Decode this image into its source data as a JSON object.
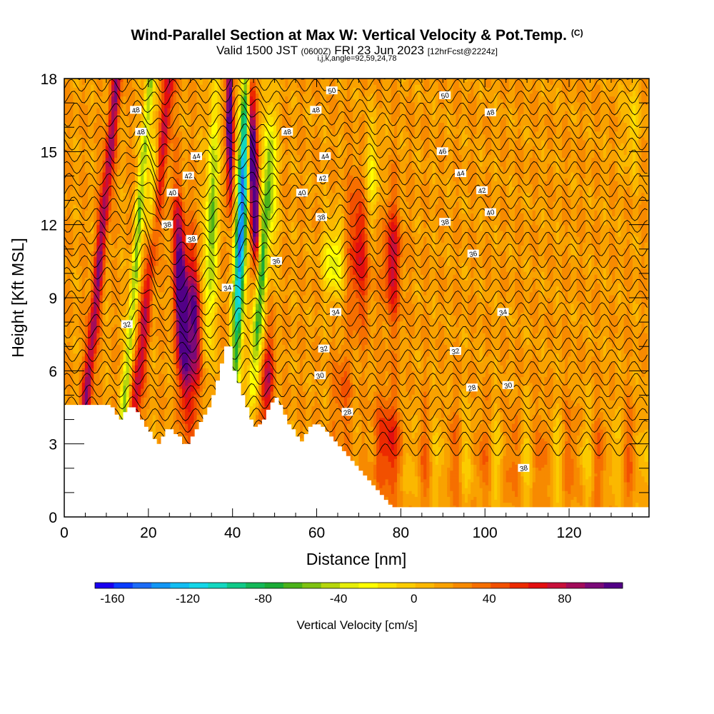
{
  "header": {
    "title": "Wind-Parallel Section at Max W: Vertical Velocity & Pot.Temp.",
    "copyright_mark": "(C)",
    "valid_prefix": "Valid 1500 JST",
    "valid_z": "(0600Z)",
    "valid_date": "FRI 23 Jun 2023",
    "forecast_tag": "[12hrFcst@2224z]",
    "section_params": "i,j,k,angle=92,59,24,78"
  },
  "chart_data": {
    "type": "heatmap",
    "xlabel": "Distance [nm]",
    "ylabel": "Height [Kft MSL]",
    "x_ticks": [
      "0",
      "20",
      "40",
      "60",
      "80",
      "100",
      "120"
    ],
    "x_tick_values": [
      0,
      20,
      40,
      60,
      80,
      100,
      120
    ],
    "y_ticks": [
      "0",
      "3",
      "6",
      "9",
      "12",
      "15",
      "18"
    ],
    "y_tick_values": [
      0,
      3,
      6,
      9,
      12,
      15,
      18
    ],
    "xlim": [
      0,
      139
    ],
    "ylim": [
      0,
      18
    ],
    "colorbar": {
      "label": "Vertical Velocity [cm/s]",
      "tick_labels": [
        "-160",
        "-120",
        "-80",
        "-40",
        "0",
        "40",
        "80"
      ],
      "tick_values": [
        -160,
        -120,
        -80,
        -40,
        0,
        40,
        80
      ],
      "range": [
        -170,
        110
      ],
      "colors": [
        "#1a00f0",
        "#0a3cff",
        "#1c6cf6",
        "#1296f5",
        "#12bdf2",
        "#13d6e8",
        "#13d7c0",
        "#10c988",
        "#14b858",
        "#1bab36",
        "#4bb21a",
        "#7fc212",
        "#b6d60c",
        "#e6ee08",
        "#ffff00",
        "#fbe300",
        "#fbcc00",
        "#fbb800",
        "#f9a200",
        "#f78a00",
        "#f66f00",
        "#f25000",
        "#ec2a00",
        "#e30f10",
        "#c8103a",
        "#a20c5a",
        "#7a0a78",
        "#520086"
      ]
    },
    "contour_labels": [
      {
        "text": "50",
        "x": 63.6,
        "y": 17.5
      },
      {
        "text": "50",
        "x": 90.5,
        "y": 17.3
      },
      {
        "text": "48",
        "x": 17.0,
        "y": 16.7
      },
      {
        "text": "48",
        "x": 18.2,
        "y": 15.8
      },
      {
        "text": "48",
        "x": 59.8,
        "y": 16.7
      },
      {
        "text": "48",
        "x": 53.0,
        "y": 15.8
      },
      {
        "text": "48",
        "x": 101.3,
        "y": 16.6
      },
      {
        "text": "46",
        "x": 89.9,
        "y": 15.0
      },
      {
        "text": "44",
        "x": 31.4,
        "y": 14.8
      },
      {
        "text": "44",
        "x": 62.0,
        "y": 14.8
      },
      {
        "text": "44",
        "x": 94.2,
        "y": 14.1
      },
      {
        "text": "42",
        "x": 29.5,
        "y": 14.0
      },
      {
        "text": "42",
        "x": 61.4,
        "y": 13.9
      },
      {
        "text": "42",
        "x": 99.3,
        "y": 13.4
      },
      {
        "text": "40",
        "x": 25.7,
        "y": 13.3
      },
      {
        "text": "40",
        "x": 56.5,
        "y": 13.3
      },
      {
        "text": "40",
        "x": 101.3,
        "y": 12.5
      },
      {
        "text": "38",
        "x": 24.5,
        "y": 12.0
      },
      {
        "text": "38",
        "x": 61.1,
        "y": 12.3
      },
      {
        "text": "38",
        "x": 90.5,
        "y": 12.1
      },
      {
        "text": "38",
        "x": 30.3,
        "y": 11.4
      },
      {
        "text": "36",
        "x": 50.4,
        "y": 10.5
      },
      {
        "text": "36",
        "x": 97.2,
        "y": 10.8
      },
      {
        "text": "34",
        "x": 38.8,
        "y": 9.4
      },
      {
        "text": "34",
        "x": 64.5,
        "y": 8.4
      },
      {
        "text": "34",
        "x": 104.3,
        "y": 8.4
      },
      {
        "text": "32",
        "x": 14.9,
        "y": 7.9
      },
      {
        "text": "32",
        "x": 61.7,
        "y": 6.9
      },
      {
        "text": "32",
        "x": 93.0,
        "y": 6.8
      },
      {
        "text": "30",
        "x": 60.8,
        "y": 5.8
      },
      {
        "text": "30",
        "x": 105.5,
        "y": 5.4
      },
      {
        "text": "28",
        "x": 96.9,
        "y": 5.3
      },
      {
        "text": "28",
        "x": 67.3,
        "y": 4.3
      },
      {
        "text": "38",
        "x": 109.2,
        "y": 2.0
      }
    ],
    "terrain": [
      [
        0,
        4.6
      ],
      [
        6,
        4.6
      ],
      [
        10,
        4.6
      ],
      [
        11,
        4.5
      ],
      [
        12,
        4.2
      ],
      [
        13,
        4.0
      ],
      [
        14,
        4.3
      ],
      [
        15,
        4.5
      ],
      [
        16,
        4.5
      ],
      [
        17,
        4.3
      ],
      [
        18,
        4.0
      ],
      [
        19,
        3.7
      ],
      [
        20,
        3.5
      ],
      [
        21,
        3.2
      ],
      [
        22,
        3.0
      ],
      [
        23,
        3.3
      ],
      [
        24,
        3.6
      ],
      [
        25,
        3.6
      ],
      [
        26,
        3.4
      ],
      [
        27,
        3.3
      ],
      [
        28,
        3.0
      ],
      [
        29,
        3.0
      ],
      [
        30,
        3.3
      ],
      [
        31,
        3.6
      ],
      [
        32,
        3.9
      ],
      [
        33,
        4.2
      ],
      [
        34,
        4.5
      ],
      [
        35,
        5.0
      ],
      [
        36,
        5.6
      ],
      [
        37,
        6.3
      ],
      [
        38,
        7.0
      ],
      [
        39,
        7.0
      ],
      [
        40,
        6.0
      ],
      [
        41,
        5.5
      ],
      [
        42,
        5.0
      ],
      [
        43,
        4.5
      ],
      [
        44,
        4.0
      ],
      [
        45,
        3.7
      ],
      [
        46,
        3.8
      ],
      [
        47,
        4.0
      ],
      [
        48,
        4.4
      ],
      [
        49,
        4.7
      ],
      [
        50,
        4.9
      ],
      [
        51,
        4.6
      ],
      [
        52,
        4.2
      ],
      [
        53,
        3.8
      ],
      [
        54,
        3.6
      ],
      [
        55,
        3.3
      ],
      [
        56,
        3.1
      ],
      [
        57,
        3.4
      ],
      [
        58,
        3.7
      ],
      [
        59,
        3.8
      ],
      [
        60,
        3.8
      ],
      [
        61,
        3.7
      ],
      [
        62,
        3.5
      ],
      [
        63,
        3.3
      ],
      [
        64,
        3.1
      ],
      [
        65,
        2.9
      ],
      [
        66,
        2.7
      ],
      [
        67,
        2.5
      ],
      [
        68,
        2.3
      ],
      [
        69,
        2.1
      ],
      [
        70,
        1.9
      ],
      [
        71,
        1.7
      ],
      [
        72,
        1.5
      ],
      [
        73,
        1.3
      ],
      [
        74,
        1.1
      ],
      [
        75,
        0.9
      ],
      [
        76,
        0.7
      ],
      [
        77,
        0.5
      ],
      [
        78,
        0.4
      ],
      [
        79,
        0.4
      ],
      [
        139,
        0.4
      ]
    ],
    "grid": true,
    "legend": "bottom"
  }
}
